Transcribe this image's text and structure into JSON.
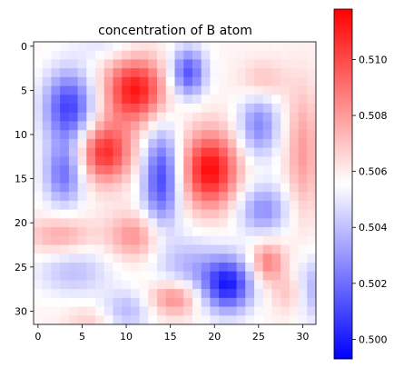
{
  "chart_data": {
    "type": "heatmap",
    "title": "concentration of B atom",
    "xlabel": "",
    "ylabel": "",
    "grid": false,
    "shape": [
      32,
      32
    ],
    "x_ticks": [
      0,
      5,
      10,
      15,
      20,
      25,
      30
    ],
    "y_ticks": [
      0,
      5,
      10,
      15,
      20,
      25,
      30
    ],
    "colorbar": {
      "colormap": "bwr",
      "vmin": 0.4993,
      "vmax": 0.5118,
      "ticks": [
        0.5,
        0.502,
        0.504,
        0.506,
        0.508,
        0.51
      ],
      "tick_labels": [
        "0.500",
        "0.502",
        "0.504",
        "0.506",
        "0.508",
        "0.510"
      ],
      "colors": {
        "low": "#0000ff",
        "mid": "#ffffff",
        "high": "#ff0000"
      }
    },
    "baseline": 0.5058,
    "blobs": [
      {
        "row": 5,
        "col": 11,
        "amplitude": 0.0055,
        "sigma_row": 2.6,
        "sigma_col": 2.4
      },
      {
        "row": 12,
        "col": 7.5,
        "amplitude": 0.005,
        "sigma_row": 2.4,
        "sigma_col": 2.2
      },
      {
        "row": 14,
        "col": 19.5,
        "amplitude": 0.0058,
        "sigma_row": 3.0,
        "sigma_col": 2.2
      },
      {
        "row": 4,
        "col": 25.5,
        "amplitude": 0.0015,
        "sigma_row": 1.6,
        "sigma_col": 1.8
      },
      {
        "row": 12,
        "col": 30,
        "amplitude": 0.0022,
        "sigma_row": 5.0,
        "sigma_col": 1.3
      },
      {
        "row": 21.5,
        "col": 2.5,
        "amplitude": 0.002,
        "sigma_row": 1.5,
        "sigma_col": 2.5
      },
      {
        "row": 21.5,
        "col": 11,
        "amplitude": 0.0025,
        "sigma_row": 1.8,
        "sigma_col": 2.2
      },
      {
        "row": 24.5,
        "col": 26,
        "amplitude": 0.003,
        "sigma_row": 1.6,
        "sigma_col": 1.3
      },
      {
        "row": 28.5,
        "col": 15.5,
        "amplitude": 0.003,
        "sigma_row": 1.4,
        "sigma_col": 2.0
      },
      {
        "row": 28,
        "col": 28.5,
        "amplitude": 0.0012,
        "sigma_row": 1.5,
        "sigma_col": 1.5
      },
      {
        "row": 31,
        "col": 6,
        "amplitude": 0.001,
        "sigma_row": 1.2,
        "sigma_col": 2.0
      },
      {
        "row": 7,
        "col": 3.5,
        "amplitude": -0.005,
        "sigma_row": 3.0,
        "sigma_col": 2.0
      },
      {
        "row": 3,
        "col": 17,
        "amplitude": -0.0045,
        "sigma_row": 2.0,
        "sigma_col": 1.4
      },
      {
        "row": 9,
        "col": 25,
        "amplitude": -0.0032,
        "sigma_row": 2.6,
        "sigma_col": 1.6
      },
      {
        "row": 15,
        "col": 14,
        "amplitude": -0.0048,
        "sigma_row": 4.0,
        "sigma_col": 1.5
      },
      {
        "row": 14.5,
        "col": 3,
        "amplitude": -0.0038,
        "sigma_row": 2.5,
        "sigma_col": 1.6
      },
      {
        "row": 18.5,
        "col": 25.5,
        "amplitude": -0.003,
        "sigma_row": 2.0,
        "sigma_col": 2.0
      },
      {
        "row": 27,
        "col": 21.5,
        "amplitude": -0.0057,
        "sigma_row": 2.2,
        "sigma_col": 2.0
      },
      {
        "row": 25,
        "col": 17,
        "amplitude": -0.002,
        "sigma_row": 2.5,
        "sigma_col": 2.5
      },
      {
        "row": 25.5,
        "col": 4,
        "amplitude": -0.0018,
        "sigma_row": 2.0,
        "sigma_col": 3.0
      },
      {
        "row": 30,
        "col": 10,
        "amplitude": -0.002,
        "sigma_row": 1.6,
        "sigma_col": 2.0
      },
      {
        "row": 27.5,
        "col": 31,
        "amplitude": -0.0022,
        "sigma_row": 2.5,
        "sigma_col": 1.2
      },
      {
        "row": 0,
        "col": 8,
        "amplitude": -0.001,
        "sigma_row": 1.2,
        "sigma_col": 2.5
      }
    ]
  }
}
